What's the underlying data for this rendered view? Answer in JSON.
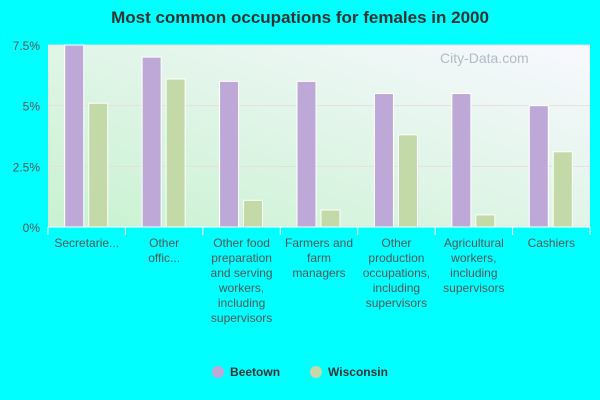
{
  "chart_data": {
    "type": "bar",
    "title": "Most common occupations for females in 2000",
    "categories": [
      "Secretarie...",
      "Other offic...",
      "Other food preparation and serving workers, including supervisors",
      "Farmers and farm managers",
      "Other production occupations, including supervisors",
      "Agricultural workers, including supervisors",
      "Cashiers"
    ],
    "series": [
      {
        "name": "Beetown",
        "color": "#bea8d8",
        "values": [
          7.5,
          7.0,
          6.0,
          6.0,
          5.5,
          5.5,
          5.0
        ]
      },
      {
        "name": "Wisconsin",
        "color": "#c4d9a8",
        "values": [
          5.1,
          6.1,
          1.1,
          0.7,
          3.8,
          0.5,
          3.1
        ]
      }
    ],
    "yticks": [
      "0%",
      "2.5%",
      "5%",
      "7.5%"
    ],
    "ylim": [
      0,
      7.5
    ],
    "legend": "bottom",
    "grid": true
  },
  "watermark": "City-Data.com"
}
